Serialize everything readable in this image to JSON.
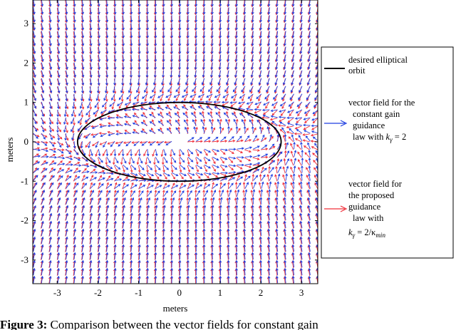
{
  "chart_data": {
    "type": "quiver",
    "xlabel": "meters",
    "ylabel": "meters",
    "xlim": [
      -3.6,
      3.4
    ],
    "ylim": [
      -3.6,
      3.6
    ],
    "xticks": [
      -3,
      -2,
      -1,
      0,
      1,
      2,
      3
    ],
    "yticks": [
      -3,
      -2,
      -1,
      0,
      1,
      2,
      3
    ],
    "orbit": {
      "center": [
        0,
        0
      ],
      "semi_major_axis": 2.5,
      "semi_minor_axis": 1.0
    },
    "grid_step": 0.2,
    "series": [
      {
        "name": "desired elliptical orbit",
        "color": "#000000",
        "style": "line"
      },
      {
        "name": "vector field for the constant gain guidance law with k_γ = 2",
        "color": "#1f3fe0",
        "style": "arrows"
      },
      {
        "name": "vector field for the proposed guidance law with k_γ = 2/κ_min",
        "color": "#f0303a",
        "style": "arrows"
      }
    ],
    "legend": {
      "placement": "right, outside plot",
      "entries": [
        {
          "lines": [
            "desired elliptical",
            "orbit"
          ]
        },
        {
          "lines": [
            "vector field for the",
            "constant gain",
            "guidance",
            "law with ",
            "k",
            "γ",
            " = 2"
          ]
        },
        {
          "lines": [
            "vector field for",
            "the proposed",
            "guidance",
            "law with",
            "k",
            "γ",
            " = 2/κ",
            "min"
          ]
        }
      ]
    }
  },
  "caption": {
    "label": "Figure 3:",
    "text": " Comparison between the vector fields for constant gain"
  }
}
